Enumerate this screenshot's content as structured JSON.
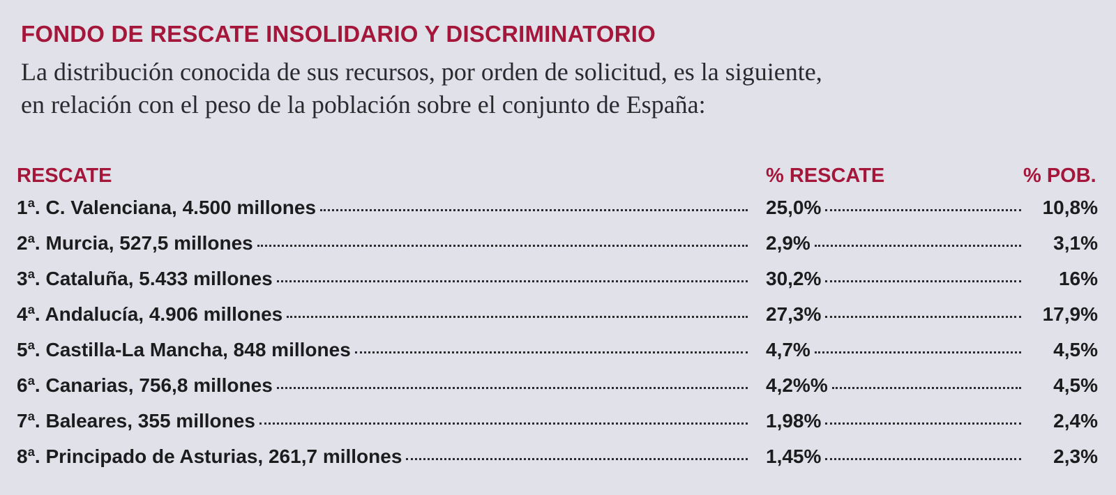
{
  "header": {
    "title": "FONDO DE RESCATE INSOLIDARIO Y DISCRIMINATORIO",
    "intro_line1": "La distribución conocida de sus recursos, por orden de solicitud, es la siguiente,",
    "intro_line2": "en relación con el peso de la población sobre el conjunto de España:"
  },
  "table": {
    "columns": {
      "rescate": "RESCATE",
      "pct_rescate": "% RESCATE",
      "pct_pob": "% POB."
    },
    "rows": [
      {
        "label": "1ª. C. Valenciana, 4.500 millones",
        "pct_rescate": "25,0%",
        "pct_pob": "10,8%"
      },
      {
        "label": "2ª. Murcia, 527,5 millones",
        "pct_rescate": "2,9%",
        "pct_pob": "3,1%"
      },
      {
        "label": "3ª. Cataluña, 5.433 millones",
        "pct_rescate": "30,2%",
        "pct_pob": "16%"
      },
      {
        "label": "4ª. Andalucía, 4.906 millones",
        "pct_rescate": "27,3%",
        "pct_pob": "17,9%"
      },
      {
        "label": "5ª. Castilla-La Mancha, 848 millones",
        "pct_rescate": "4,7%",
        "pct_pob": "4,5%"
      },
      {
        "label": "6ª. Canarias, 756,8 millones",
        "pct_rescate": "4,2%%",
        "pct_pob": "4,5%"
      },
      {
        "label": "7ª. Baleares, 355 millones",
        "pct_rescate": "1,98%",
        "pct_pob": "2,4%"
      },
      {
        "label": "8ª. Principado de Asturias, 261,7 millones",
        "pct_rescate": "1,45%",
        "pct_pob": "2,3%"
      }
    ]
  }
}
